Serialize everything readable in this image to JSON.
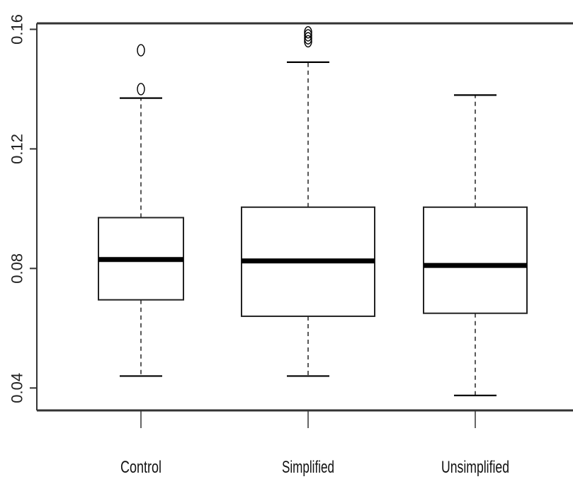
{
  "chart_data": {
    "type": "boxplot",
    "title": "",
    "xlabel": "",
    "ylabel": "",
    "ylim": [
      0.0325,
      0.162
    ],
    "yticks": [
      0.04,
      0.08,
      0.12,
      0.16
    ],
    "ytick_labels": [
      "0.04",
      "0.08",
      "0.12",
      "0.16"
    ],
    "categories": [
      "Control",
      "Simplified",
      "Unsimplified"
    ],
    "boxes": [
      {
        "name": "Control",
        "whisker_low": 0.044,
        "q1": 0.0695,
        "median": 0.083,
        "q3": 0.097,
        "whisker_high": 0.137,
        "outliers": [
          0.14,
          0.153
        ]
      },
      {
        "name": "Simplified",
        "whisker_low": 0.044,
        "q1": 0.064,
        "median": 0.0825,
        "q3": 0.1005,
        "whisker_high": 0.149,
        "outliers": [
          0.156,
          0.157,
          0.158,
          0.159
        ]
      },
      {
        "name": "Unsimplified",
        "whisker_low": 0.0375,
        "q1": 0.065,
        "median": 0.081,
        "q3": 0.1005,
        "whisker_high": 0.138,
        "outliers": []
      }
    ],
    "grid": false,
    "legend": "none"
  }
}
